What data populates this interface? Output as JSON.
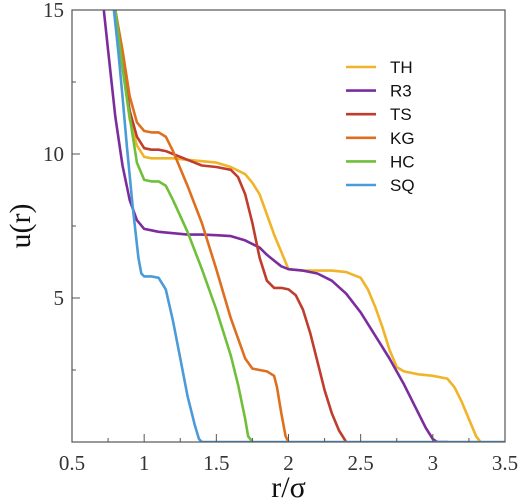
{
  "chart_data": {
    "type": "line",
    "xlabel": "r/σ",
    "ylabel": "u(r)",
    "xlim": [
      0.5,
      3.5
    ],
    "ylim": [
      0,
      15
    ],
    "xticks": [
      "0.5",
      "1",
      "1.5",
      "2",
      "2.5",
      "3",
      "3.5"
    ],
    "xtick_values": [
      0.5,
      1.0,
      1.5,
      2.0,
      2.5,
      3.0,
      3.5
    ],
    "yticks": [
      "5",
      "10",
      "15"
    ],
    "ytick_values": [
      5,
      10,
      15
    ],
    "grid": false,
    "legend_position": "top-right",
    "series": [
      {
        "name": "TH",
        "color": "#f0b429",
        "x": [
          0.8,
          0.85,
          0.9,
          0.95,
          1.0,
          1.05,
          1.1,
          1.2,
          1.3,
          1.4,
          1.5,
          1.6,
          1.7,
          1.75,
          1.8,
          1.85,
          1.9,
          1.95,
          2.0,
          2.1,
          2.2,
          2.3,
          2.4,
          2.5,
          2.55,
          2.6,
          2.65,
          2.7,
          2.75,
          2.8,
          2.9,
          3.0,
          3.1,
          3.15,
          3.2,
          3.25,
          3.3,
          3.33
        ],
        "y": [
          15,
          13.0,
          11.2,
          10.3,
          9.9,
          9.85,
          9.85,
          9.85,
          9.8,
          9.75,
          9.7,
          9.55,
          9.3,
          9.0,
          8.6,
          7.9,
          7.2,
          6.6,
          6.0,
          5.95,
          5.95,
          5.95,
          5.9,
          5.7,
          5.3,
          4.7,
          4.0,
          3.2,
          2.6,
          2.45,
          2.35,
          2.3,
          2.2,
          1.9,
          1.4,
          0.8,
          0.2,
          0.0
        ]
      },
      {
        "name": "R3",
        "color": "#7b2d9e",
        "x": [
          0.72,
          0.75,
          0.8,
          0.85,
          0.9,
          0.95,
          1.0,
          1.05,
          1.1,
          1.2,
          1.3,
          1.4,
          1.5,
          1.6,
          1.7,
          1.8,
          1.85,
          1.9,
          1.95,
          2.0,
          2.1,
          2.2,
          2.3,
          2.4,
          2.5,
          2.6,
          2.7,
          2.8,
          2.9,
          2.95,
          3.0,
          3.03,
          3.1
        ],
        "y": [
          15,
          13.6,
          11.3,
          9.6,
          8.4,
          7.7,
          7.4,
          7.35,
          7.3,
          7.25,
          7.2,
          7.2,
          7.18,
          7.15,
          7.0,
          6.75,
          6.5,
          6.3,
          6.1,
          6.0,
          5.95,
          5.85,
          5.6,
          5.15,
          4.5,
          3.7,
          2.9,
          2.0,
          1.0,
          0.5,
          0.1,
          0.0,
          0.0
        ]
      },
      {
        "name": "TS",
        "color": "#c03d2e",
        "x": [
          0.8,
          0.85,
          0.9,
          0.95,
          1.0,
          1.05,
          1.1,
          1.15,
          1.2,
          1.3,
          1.4,
          1.5,
          1.6,
          1.65,
          1.7,
          1.75,
          1.8,
          1.85,
          1.9,
          1.95,
          2.0,
          2.05,
          2.1,
          2.15,
          2.2,
          2.25,
          2.3,
          2.35,
          2.4
        ],
        "y": [
          15,
          13.2,
          11.5,
          10.6,
          10.2,
          10.15,
          10.15,
          10.1,
          10.0,
          9.8,
          9.6,
          9.55,
          9.45,
          9.2,
          8.6,
          7.6,
          6.4,
          5.6,
          5.35,
          5.35,
          5.3,
          5.1,
          4.6,
          3.8,
          2.8,
          1.8,
          1.0,
          0.4,
          0.0
        ]
      },
      {
        "name": "KG",
        "color": "#de6f1f",
        "x": [
          0.8,
          0.85,
          0.9,
          0.95,
          1.0,
          1.05,
          1.1,
          1.15,
          1.2,
          1.3,
          1.4,
          1.5,
          1.6,
          1.7,
          1.75,
          1.8,
          1.85,
          1.9,
          1.92,
          1.95,
          1.98,
          2.0
        ],
        "y": [
          15,
          13.6,
          12.0,
          11.1,
          10.8,
          10.75,
          10.75,
          10.6,
          10.1,
          8.9,
          7.6,
          6.0,
          4.3,
          2.9,
          2.55,
          2.5,
          2.45,
          2.3,
          1.9,
          1.0,
          0.2,
          0.0
        ]
      },
      {
        "name": "HC",
        "color": "#6fbf3a",
        "x": [
          0.8,
          0.85,
          0.9,
          0.95,
          1.0,
          1.05,
          1.1,
          1.15,
          1.2,
          1.3,
          1.4,
          1.5,
          1.6,
          1.65,
          1.7,
          1.72,
          1.75
        ],
        "y": [
          15,
          13.0,
          11.3,
          9.7,
          9.1,
          9.05,
          9.05,
          8.9,
          8.4,
          7.3,
          6.0,
          4.6,
          3.0,
          2.0,
          0.8,
          0.2,
          0.0
        ]
      },
      {
        "name": "SQ",
        "color": "#4a9bd8",
        "x": [
          0.79,
          0.82,
          0.85,
          0.88,
          0.92,
          0.96,
          0.98,
          1.0,
          1.05,
          1.1,
          1.15,
          1.2,
          1.25,
          1.3,
          1.35,
          1.38,
          1.4,
          3.5
        ],
        "y": [
          15,
          13.6,
          12.0,
          10.3,
          8.2,
          6.4,
          5.85,
          5.75,
          5.75,
          5.7,
          5.3,
          4.2,
          2.9,
          1.6,
          0.6,
          0.1,
          0.0,
          0.0
        ]
      }
    ]
  }
}
